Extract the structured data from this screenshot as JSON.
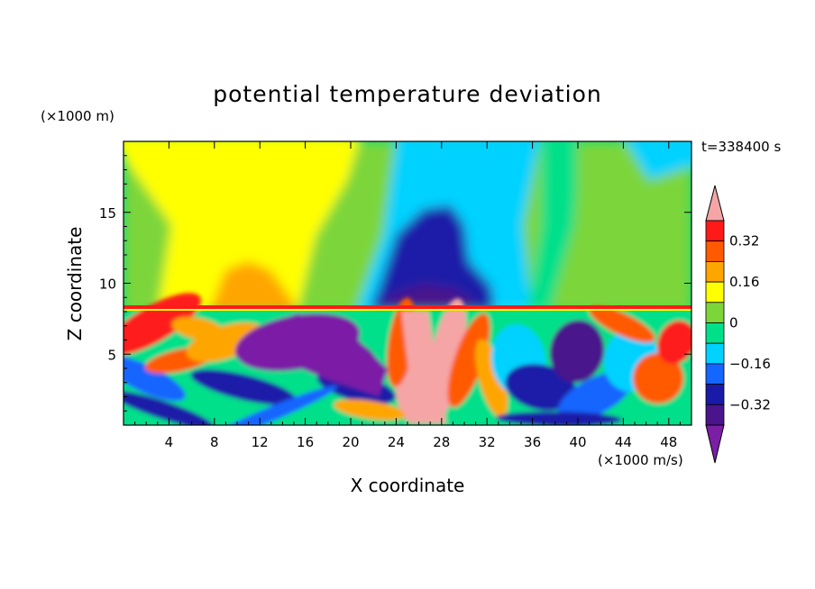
{
  "chart_data": {
    "type": "heatmap",
    "title": "potential temperature deviation",
    "xlabel": "X coordinate",
    "ylabel": "Z coordinate",
    "x_unit": "(×1000 m/s)",
    "y_unit": "(×1000 m)",
    "time_label": "t=338400 s",
    "xlim": [
      0,
      50
    ],
    "ylim": [
      0,
      20
    ],
    "x_ticks": [
      "4",
      "8",
      "12",
      "16",
      "20",
      "24",
      "28",
      "32",
      "36",
      "40",
      "44",
      "48"
    ],
    "y_ticks": [
      "5",
      "10",
      "15"
    ],
    "grid": false,
    "colorbar": {
      "placement": "right",
      "colors": [
        "#7b1fa6",
        "#4a148c",
        "#1a1aa8",
        "#1565ff",
        "#00d2ff",
        "#00e08a",
        "#7cd63a",
        "#ffff00",
        "#ffa500",
        "#ff5a00",
        "#ff1a1a",
        "#f5a5a5"
      ],
      "levels": [
        -0.4,
        -0.32,
        -0.24,
        -0.16,
        -0.08,
        0,
        0.08,
        0.16,
        0.24,
        0.32,
        0.4
      ],
      "labels": [
        "0.32",
        "0.16",
        "0",
        "−0.16",
        "−0.32"
      ],
      "label_values": [
        0.32,
        0.16,
        0,
        -0.16,
        -0.32
      ]
    }
  }
}
